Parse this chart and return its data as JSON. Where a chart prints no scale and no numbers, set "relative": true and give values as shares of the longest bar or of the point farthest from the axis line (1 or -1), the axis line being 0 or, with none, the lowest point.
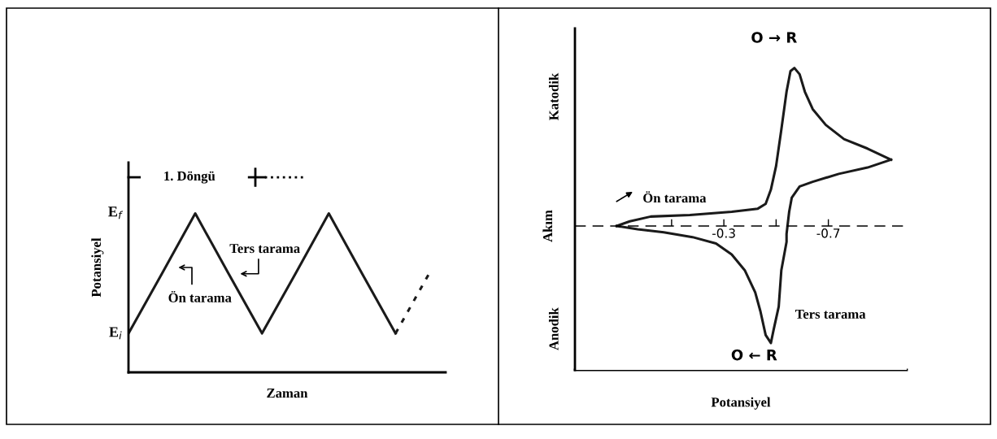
{
  "chart_data": [
    {
      "type": "line",
      "relative": true,
      "categories": [
        null,
        null,
        null,
        null,
        null,
        null,
        null,
        null,
        null,
        null
      ],
      "series": [
        {
          "color": "#1a1a1a",
          "line_style": "solid",
          "values": [
            0.245,
            0.62,
            1,
            0.62,
            0.245,
            0.62,
            1,
            0.62,
            0.245,
            null
          ]
        },
        {
          "color": "#1a1a1a",
          "line_style": "dotted",
          "values": [
            null,
            null,
            null,
            null,
            null,
            null,
            null,
            null,
            0.245,
            0.62
          ]
        }
      ],
      "xlabel": "Zaman",
      "ylabel": "Potansiyel",
      "tick_labels": false,
      "annotations": [
        "E$_{i}$",
        "E$_{f}$",
        "1. Döngü",
        "Ön tarama",
        "Ters tarama"
      ]
    },
    {
      "type": "line",
      "relative": true,
      "series": [
        {
          "color": "#1a1a1a",
          "line_style": "solid",
          "x": [
            0.11,
            0.06,
            -0.02,
            -0.17,
            -0.33,
            -0.43,
            -0.46,
            -0.48,
            -0.5,
            -0.52,
            -0.54,
            -0.555,
            -0.57,
            -0.59,
            -0.61,
            -0.64,
            -0.69,
            -0.76,
            -0.85,
            -0.94
          ],
          "values": [
            0.0,
            0.03,
            0.06,
            0.07,
            0.09,
            0.11,
            0.14,
            0.23,
            0.38,
            0.61,
            0.85,
            0.98,
            1,
            0.96,
            0.85,
            0.74,
            0.64,
            0.55,
            0.49,
            0.42
          ]
        },
        {
          "color": "#1a1a1a",
          "line_style": "solid",
          "x": [
            -0.94,
            -0.85,
            -0.74,
            -0.64,
            -0.59,
            -0.56,
            -0.55,
            -0.54,
            -0.54,
            -0.52,
            -0.51,
            -0.49,
            -0.48,
            -0.46,
            -0.44,
            -0.42,
            -0.38,
            -0.33,
            -0.27,
            -0.18,
            -0.07,
            0.03,
            0.11
          ],
          "values": [
            0.42,
            0.37,
            0.33,
            0.28,
            0.25,
            0.18,
            0.09,
            -0.05,
            -0.1,
            -0.28,
            -0.51,
            -0.66,
            -0.74,
            -0.69,
            -0.54,
            -0.42,
            -0.28,
            -0.18,
            -0.11,
            -0.07,
            -0.04,
            -0.02,
            0.0
          ]
        }
      ],
      "ref_lines": [
        {
          "axis": "y",
          "value": 0,
          "line_style": "dashed",
          "color": "#000000"
        }
      ],
      "xlim": [
        0.27,
        -1.0
      ],
      "xticks": [
        {
          "value": -0.1,
          "label": null
        },
        {
          "value": -0.3,
          "label": "-0.3"
        },
        {
          "value": -0.5,
          "label": null
        },
        {
          "value": -0.7,
          "label": "-0.7"
        }
      ],
      "xlabel": "Potansiyel",
      "ylabel": "Akım",
      "tick_labels": "x",
      "annotations": [
        "Katodik",
        "Anodik",
        "O → R",
        "O ← R",
        "Ön tarama",
        "Ters tarama"
      ]
    }
  ]
}
